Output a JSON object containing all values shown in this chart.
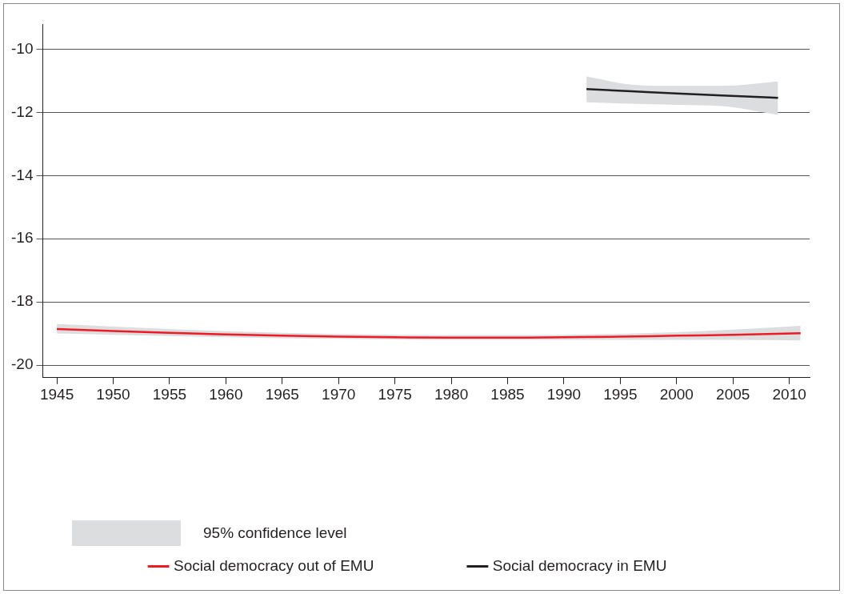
{
  "chart_data": {
    "type": "line",
    "xlim": [
      1943.75,
      2011.8
    ],
    "xticks": [
      1945,
      1950,
      1955,
      1960,
      1965,
      1970,
      1975,
      1980,
      1985,
      1990,
      1995,
      2000,
      2005,
      2010
    ],
    "ylim": [
      -20.4,
      -9.2
    ],
    "yticks": [
      -20,
      -18,
      -16,
      -14,
      -12,
      -10
    ],
    "grid": "y",
    "legend": "bottom",
    "marker": "none",
    "line_style": "solid",
    "annotations": [
      "95% confidence level"
    ],
    "series": [
      {
        "name": "Social democracy out of EMU",
        "color": "#ed1c24",
        "x": [
          1945,
          1950,
          1955,
          1960,
          1965,
          1970,
          1975,
          1980,
          1985,
          1990,
          1995,
          2000,
          2005,
          2011
        ],
        "values": [
          -18.86,
          -18.92,
          -18.98,
          -19.03,
          -19.07,
          -19.1,
          -19.12,
          -19.13,
          -19.13,
          -19.12,
          -19.1,
          -19.07,
          -19.04,
          -18.99
        ],
        "lower": [
          -19.0,
          -19.04,
          -19.08,
          -19.12,
          -19.15,
          -19.17,
          -19.19,
          -19.2,
          -19.2,
          -19.2,
          -19.2,
          -19.2,
          -19.2,
          -19.22
        ],
        "upper": [
          -18.7,
          -18.78,
          -18.86,
          -18.93,
          -18.98,
          -19.02,
          -19.04,
          -19.05,
          -19.05,
          -19.04,
          -19.01,
          -18.96,
          -18.88,
          -18.76
        ]
      },
      {
        "name": "Social democracy in EMU",
        "color": "#231f20",
        "x": [
          1992,
          1996,
          2000,
          2004,
          2009
        ],
        "values": [
          -11.26,
          -11.33,
          -11.4,
          -11.46,
          -11.54
        ],
        "lower": [
          -11.68,
          -11.72,
          -11.76,
          -11.8,
          -12.08
        ],
        "upper": [
          -10.86,
          -11.12,
          -11.16,
          -11.16,
          -11.02
        ]
      }
    ]
  }
}
